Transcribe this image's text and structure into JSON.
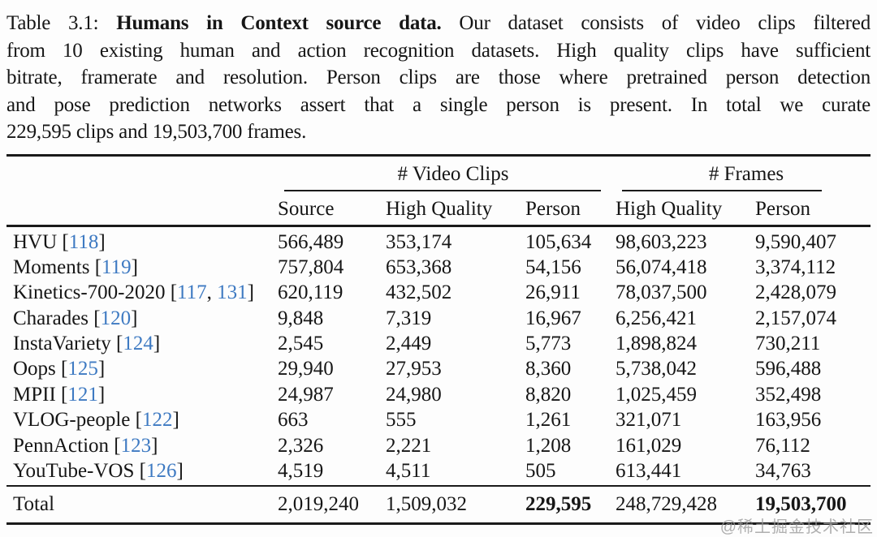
{
  "caption": {
    "line1_prefix": "Table 3.1: ",
    "line1_bold": "Humans in Context source data.",
    "line1_rest": " Our dataset consists of video clips filtered",
    "line2": "from 10 existing human and action recognition datasets. High quality clips have sufficient",
    "line3": "bitrate, framerate and resolution. Person clips are those where pretrained person detection",
    "line4": "and pose prediction networks assert that a single person is present. In total we curate",
    "line5": "229,595 clips and 19,503,700 frames."
  },
  "table": {
    "group_headers": {
      "video_clips": "# Video Clips",
      "frames": "# Frames"
    },
    "col_headers": [
      "Source",
      "High Quality",
      "Person",
      "High Quality",
      "Person"
    ],
    "rows": [
      {
        "name": "HVU",
        "cites": [
          "118"
        ],
        "source": "566,489",
        "hq_clips": "353,174",
        "person_clips": "105,634",
        "hq_frames": "98,603,223",
        "person_frames": "9,590,407"
      },
      {
        "name": "Moments",
        "cites": [
          "119"
        ],
        "source": "757,804",
        "hq_clips": "653,368",
        "person_clips": "54,156",
        "hq_frames": "56,074,418",
        "person_frames": "3,374,112"
      },
      {
        "name": "Kinetics-700-2020",
        "cites": [
          "117",
          "131"
        ],
        "source": "620,119",
        "hq_clips": "432,502",
        "person_clips": "26,911",
        "hq_frames": "78,037,500",
        "person_frames": "2,428,079"
      },
      {
        "name": "Charades",
        "cites": [
          "120"
        ],
        "source": "9,848",
        "hq_clips": "7,319",
        "person_clips": "16,967",
        "hq_frames": "6,256,421",
        "person_frames": "2,157,074"
      },
      {
        "name": "InstaVariety",
        "cites": [
          "124"
        ],
        "source": "2,545",
        "hq_clips": "2,449",
        "person_clips": "5,773",
        "hq_frames": "1,898,824",
        "person_frames": "730,211"
      },
      {
        "name": "Oops",
        "cites": [
          "125"
        ],
        "source": "29,940",
        "hq_clips": "27,953",
        "person_clips": "8,360",
        "hq_frames": "5,738,042",
        "person_frames": "596,488"
      },
      {
        "name": "MPII",
        "cites": [
          "121"
        ],
        "source": "24,987",
        "hq_clips": "24,980",
        "person_clips": "8,820",
        "hq_frames": "1,025,459",
        "person_frames": "352,498"
      },
      {
        "name": "VLOG-people",
        "cites": [
          "122"
        ],
        "source": "663",
        "hq_clips": "555",
        "person_clips": "1,261",
        "hq_frames": "321,071",
        "person_frames": "163,956"
      },
      {
        "name": "PennAction",
        "cites": [
          "123"
        ],
        "source": "2,326",
        "hq_clips": "2,221",
        "person_clips": "1,208",
        "hq_frames": "161,029",
        "person_frames": "76,112"
      },
      {
        "name": "YouTube-VOS",
        "cites": [
          "126"
        ],
        "source": "4,519",
        "hq_clips": "4,511",
        "person_clips": "505",
        "hq_frames": "613,441",
        "person_frames": "34,763"
      }
    ],
    "total": {
      "label": "Total",
      "source": "2,019,240",
      "hq_clips": "1,509,032",
      "person_clips": "229,595",
      "hq_frames": "248,729,428",
      "person_frames": "19,503,700"
    }
  },
  "colors": {
    "text": "#1a1a1a",
    "citation_blue": "#3e7ac2",
    "watermark_gray": "#9c9c9c"
  },
  "watermark": {
    "text": "@稀土掘金技术社区"
  }
}
